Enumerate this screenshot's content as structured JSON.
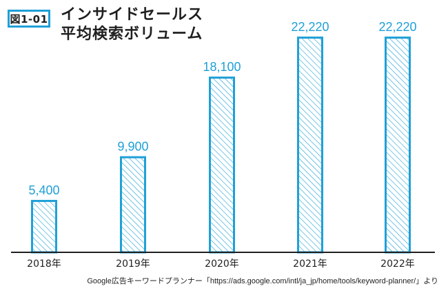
{
  "figure_label": "図1-01",
  "title_line1": "インサイドセールス",
  "title_line2": "平均検索ボリューム",
  "source_note": "Google広告キーワードプランナー「https://ads.google.com/intl/ja_jp/home/tools/keyword-planner/」より",
  "colors": {
    "accent": "#1ea0d7",
    "text": "#1f1f1f",
    "axis": "#1f1f1f"
  },
  "chart_data": {
    "type": "bar",
    "title": "インサイドセールス 平均検索ボリューム",
    "categories": [
      "2018年",
      "2019年",
      "2020年",
      "2021年",
      "2022年"
    ],
    "values": [
      5400,
      9900,
      18100,
      22220,
      22220
    ],
    "value_labels": [
      "5,400",
      "9,900",
      "18,100",
      "22,220",
      "22,220"
    ],
    "ylim": [
      0,
      24000
    ],
    "bar_style": "hatched",
    "grid": false,
    "legend": "none"
  }
}
